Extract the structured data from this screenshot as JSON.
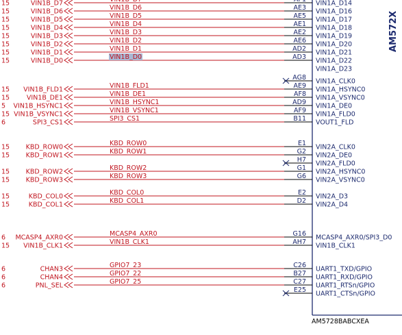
{
  "chip": {
    "title": "AM572X",
    "part_number": "AM5728BABCXEA"
  },
  "colors": {
    "net": "#c0141e",
    "pin_text": "#1c2a6e",
    "highlight": "#a9b8d4"
  },
  "rows": [
    {
      "prefix": "15",
      "port": "VIN1B_D7",
      "net": "VIN1B_D7",
      "pin": "AF1",
      "signal": "VIN1A_D14"
    },
    {
      "prefix": "15",
      "port": "VIN1B_D6",
      "net": "VIN1B_D6",
      "pin": "AE3",
      "signal": "VIN1A_D16"
    },
    {
      "prefix": "15",
      "port": "VIN1B_D5",
      "net": "VIN1B_D5",
      "pin": "AE5",
      "signal": "VIN1A_D17"
    },
    {
      "prefix": "15",
      "port": "VIN1B_D4",
      "net": "VIN1B_D4",
      "pin": "AE1",
      "signal": "VIN1A_D18"
    },
    {
      "prefix": "15",
      "port": "VIN1B_D3",
      "net": "VIN1B_D3",
      "pin": "AE2",
      "signal": "VIN1A_D19"
    },
    {
      "prefix": "15",
      "port": "VIN1B_D2",
      "net": "VIN1B_D2",
      "pin": "AE6",
      "signal": "VIN1A_D20"
    },
    {
      "prefix": "15",
      "port": "VIN1B_D1",
      "net": "VIN1B_D1",
      "pin": "AD2",
      "signal": "VIN1A_D21"
    },
    {
      "prefix": "15",
      "port": "VIN1B_D0",
      "net": "VIN1B_D0",
      "pin": "AD3",
      "signal": "VIN1A_D22",
      "highlight": true
    },
    {
      "prefix": "",
      "port": "",
      "net": "",
      "pin": "",
      "signal": "VIN1A_D23"
    },
    {
      "prefix": "",
      "port": "",
      "net": "",
      "pin": "AG8",
      "signal": "VIN1A_CLK0",
      "nc": true
    },
    {
      "prefix": "15",
      "port": "VIN1B_FLD1",
      "net": "VIN1B_FLD1",
      "pin": "AE9",
      "signal": "VIN1A_HSYNC0"
    },
    {
      "prefix": "15",
      "port": "VIN1B_DE1",
      "net": "VIN1B_DE1",
      "pin": "AF8",
      "signal": "VIN1A_VSYNC0"
    },
    {
      "prefix": "5",
      "port": "VIN1B_HSYNC1",
      "net": "VIN1B_HSYNC1",
      "pin": "AD9",
      "signal": "VIN1A_DE0"
    },
    {
      "prefix": "15",
      "port": "VIN1B_VSYNC1",
      "net": "VIN1B_VSYNC1",
      "pin": "AF9",
      "signal": "VIN1A_FLD0"
    },
    {
      "prefix": "6",
      "port": "SPI3_CS1",
      "net": "SPI3_CS1",
      "pin": "B11",
      "signal": "VOUT1_FLD"
    },
    {
      "prefix": "15",
      "port": "KBD_ROW0",
      "net": "KBD_ROW0",
      "pin": "E1",
      "signal": "VIN2A_CLK0"
    },
    {
      "prefix": "15",
      "port": "KBD_ROW1",
      "net": "KBD_ROW1",
      "pin": "G2",
      "signal": "VIN2A_DE0"
    },
    {
      "prefix": "",
      "port": "",
      "net": "",
      "pin": "H7",
      "signal": "VIN2A_FLD0",
      "nc": true
    },
    {
      "prefix": "15",
      "port": "KBD_ROW2",
      "net": "KBD_ROW2",
      "pin": "G1",
      "signal": "VIN2A_HSYNC0"
    },
    {
      "prefix": "15",
      "port": "KBD_ROW3",
      "net": "KBD_ROW3",
      "pin": "G6",
      "signal": "VIN2A_VSYNC0"
    },
    {
      "prefix": "15",
      "port": "KBD_COL0",
      "net": "KBD_COL0",
      "pin": "E2",
      "signal": "VIN2A_D3"
    },
    {
      "prefix": "15",
      "port": "KBD_COL1",
      "net": "KBD_COL1",
      "pin": "D2",
      "signal": "VIN2A_D4"
    },
    {
      "prefix": "6",
      "port": "MCASP4_AXR0",
      "net": "MCASP4_AXR0",
      "pin": "G16",
      "signal": "MCASP4_AXR0/SPI3_D0"
    },
    {
      "prefix": "15",
      "port": "VIN1B_CLK1",
      "net": "VIN1B_CLK1",
      "pin": "AH7",
      "signal": "VIN1B_CLK1"
    },
    {
      "prefix": "6",
      "port": "CHAN3",
      "net": "GPIO7_23",
      "pin": "C26",
      "signal": "UART1_TXD/GPIO"
    },
    {
      "prefix": "6",
      "port": "CHAN4",
      "net": "GPIO7_22",
      "pin": "B27",
      "signal": "UART1_RXD/GPIO"
    },
    {
      "prefix": "6",
      "port": "PNL_SEL",
      "net": "GPIO7_25",
      "pin": "C27",
      "signal": "UART1_RTSn/GPIO"
    },
    {
      "prefix": "",
      "port": "",
      "net": "",
      "pin": "E25",
      "signal": "UART1_CTSn/GPIO",
      "nc": true
    }
  ]
}
